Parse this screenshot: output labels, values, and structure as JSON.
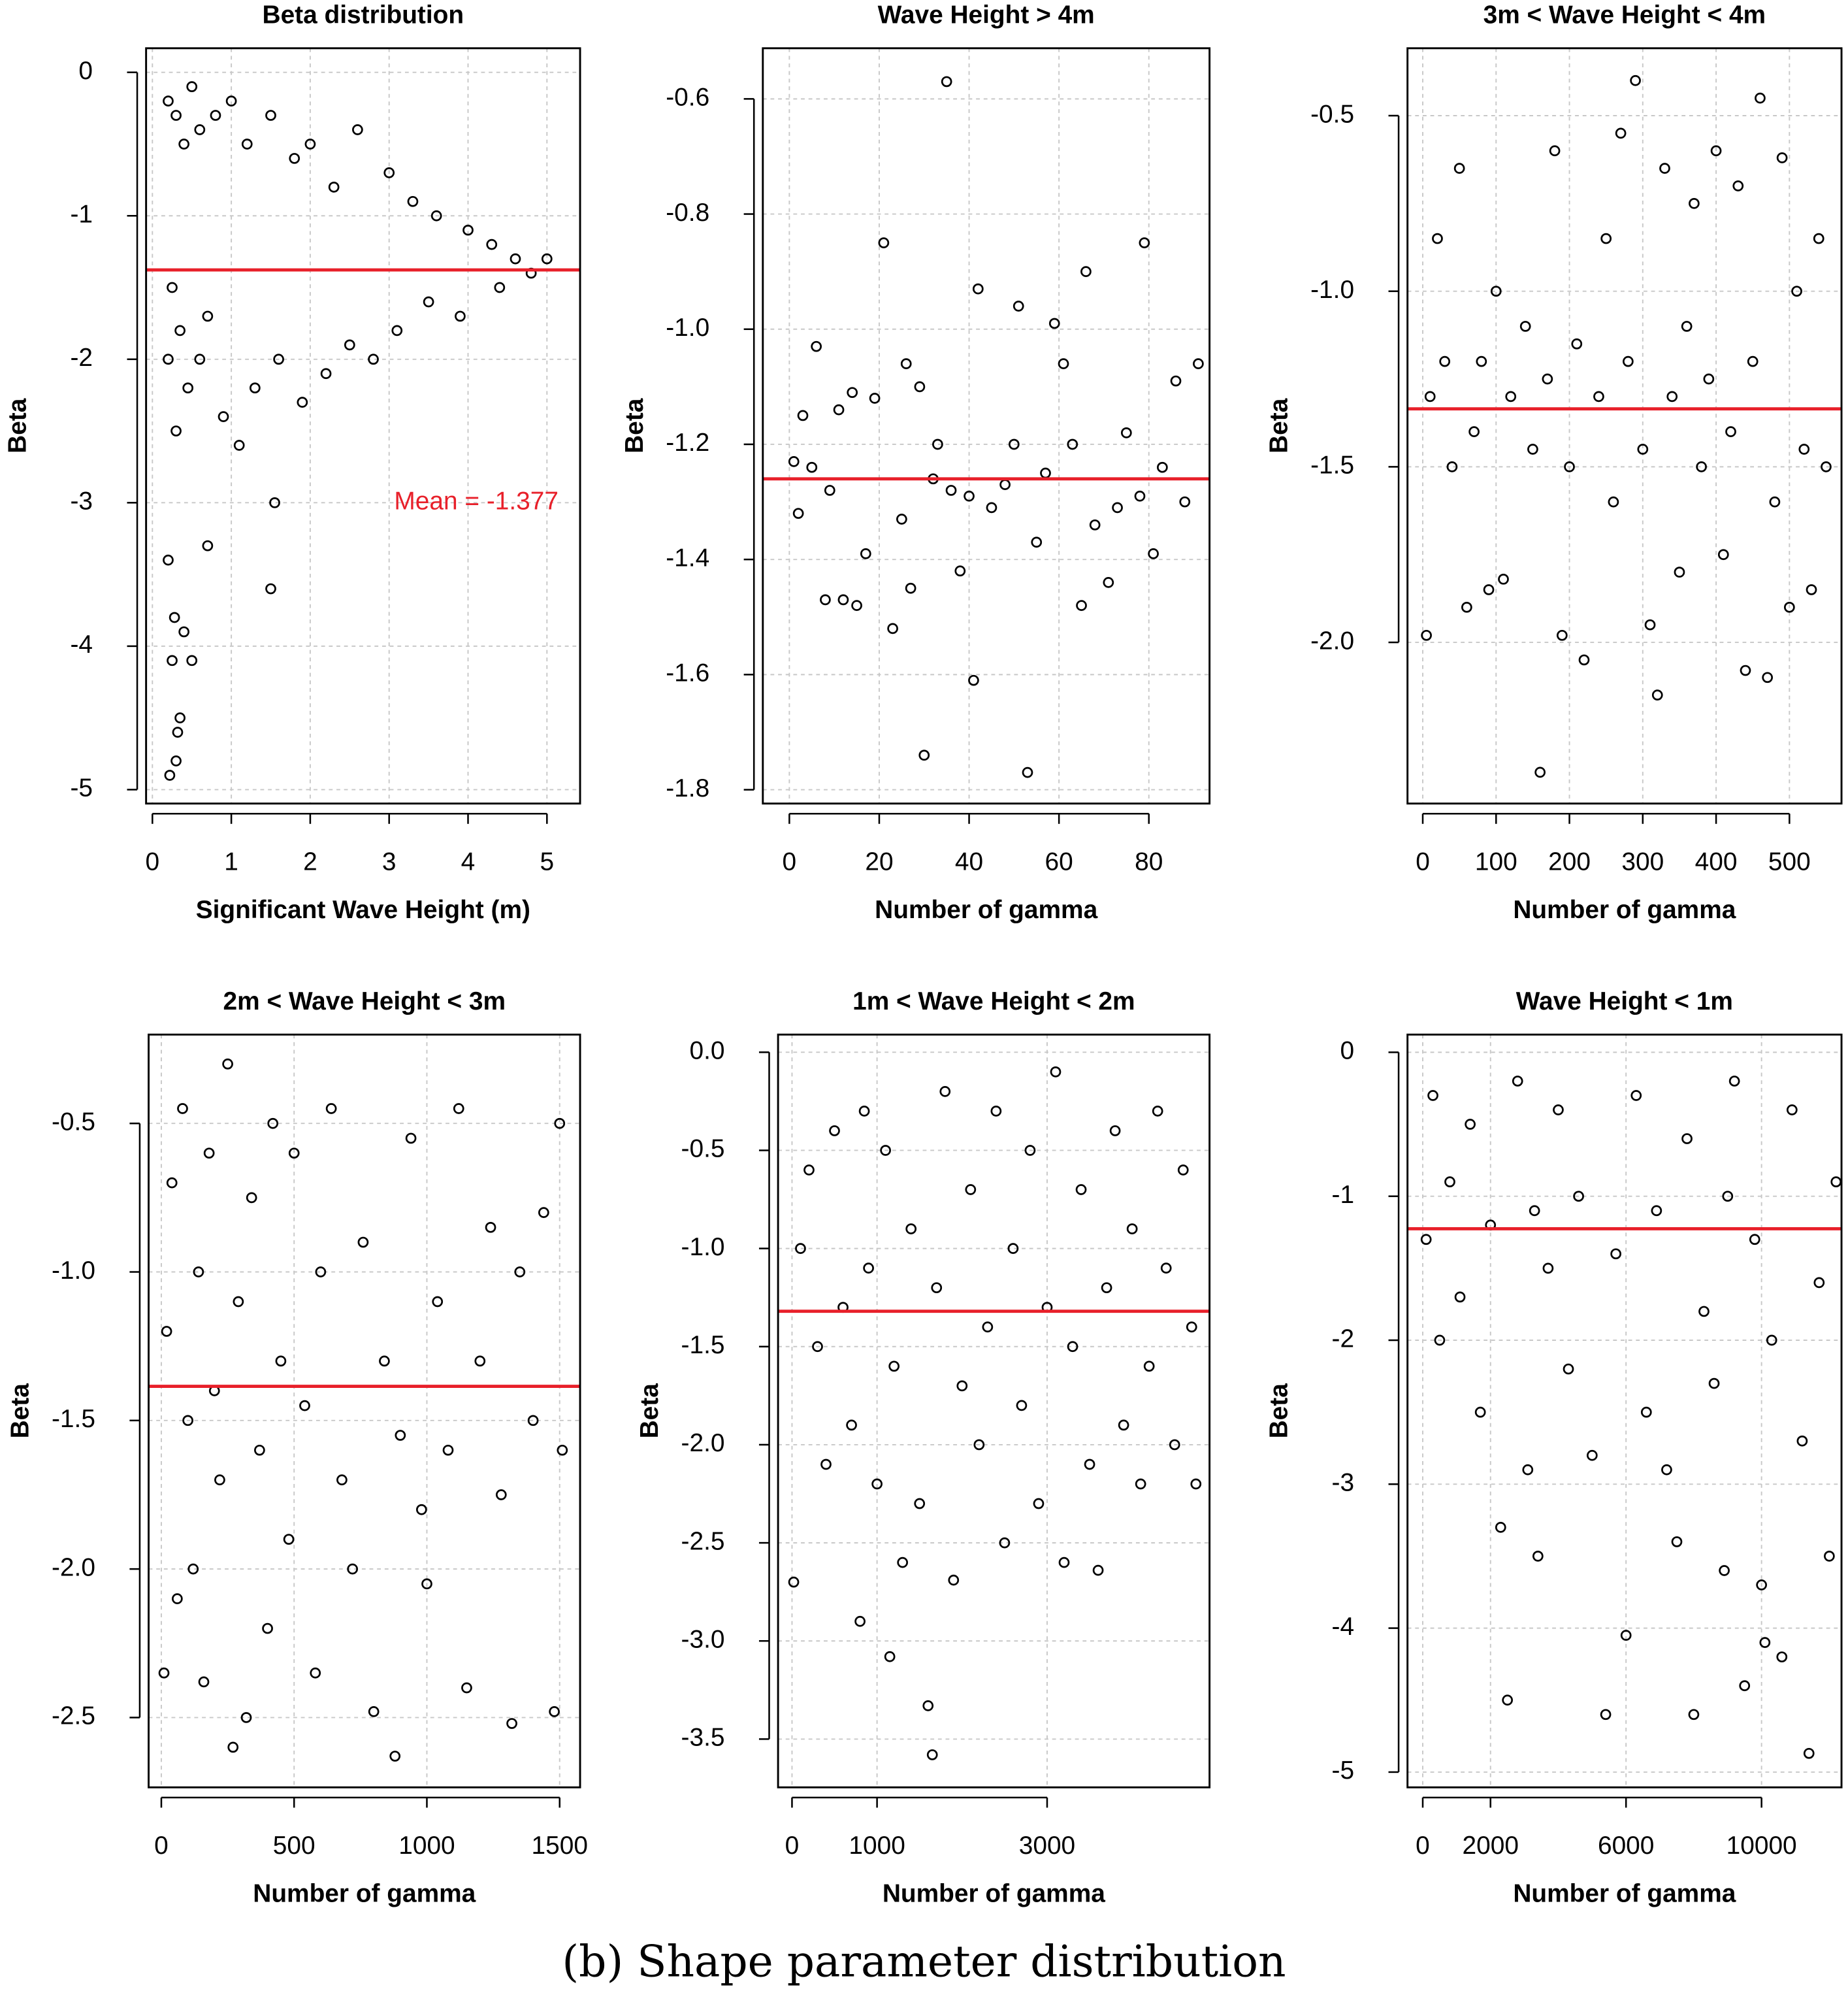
{
  "chart_data": [
    {
      "type": "scatter",
      "title": "Beta distribution",
      "x_label": "Significant Wave Height (m)",
      "y_label": "Beta",
      "x": [
        0.2,
        0.3,
        0.4,
        0.5,
        0.6,
        0.8,
        1.0,
        1.2,
        1.5,
        1.8,
        2.0,
        2.3,
        2.6,
        3.0,
        3.3,
        3.6,
        4.0,
        4.3,
        4.6,
        5.0,
        0.2,
        0.3,
        0.25,
        0.35,
        0.45,
        0.6,
        0.7,
        0.9,
        1.1,
        1.3,
        1.6,
        1.9,
        2.2,
        2.5,
        2.8,
        3.1,
        3.5,
        3.9,
        4.4,
        4.8,
        0.2,
        0.25,
        0.3,
        0.35,
        0.4,
        0.5,
        0.7,
        1.5,
        1.55,
        0.22,
        0.28,
        0.32
      ],
      "values": [
        -0.2,
        -0.3,
        -0.5,
        -0.1,
        -0.4,
        -0.3,
        -0.2,
        -0.5,
        -0.3,
        -0.6,
        -0.5,
        -0.8,
        -0.4,
        -0.7,
        -0.9,
        -1.0,
        -1.1,
        -1.2,
        -1.3,
        -1.3,
        -2.0,
        -2.5,
        -1.5,
        -1.8,
        -2.2,
        -2.0,
        -1.7,
        -2.4,
        -2.6,
        -2.2,
        -2.0,
        -2.3,
        -2.1,
        -1.9,
        -2.0,
        -1.8,
        -1.6,
        -1.7,
        -1.5,
        -1.4,
        -3.4,
        -4.1,
        -4.8,
        -4.5,
        -3.9,
        -4.1,
        -3.3,
        -3.6,
        -3.0,
        -4.9,
        -3.8,
        -4.6
      ],
      "color": "#000000",
      "mean_line": -1.377,
      "mean_line_color": "#e8202a",
      "annotation": "Mean = -1.377",
      "xlim": [
        -0.08,
        5.42
      ],
      "ylim": [
        -5.097,
        0.168
      ],
      "xticks": [
        0,
        1,
        2,
        3,
        4,
        5
      ],
      "yticks": [
        0,
        -1,
        -2,
        -3,
        -4,
        -5
      ],
      "grid": true
    },
    {
      "type": "scatter",
      "title": "Wave Height > 4m",
      "x_label": "Number of gamma",
      "y_label": "Beta",
      "x": [
        1,
        2,
        3,
        5,
        6,
        8,
        9,
        11,
        12,
        14,
        15,
        17,
        19,
        21,
        23,
        25,
        26,
        27,
        29,
        30,
        32,
        33,
        35,
        36,
        38,
        40,
        41,
        42,
        45,
        48,
        50,
        51,
        53,
        55,
        57,
        59,
        61,
        63,
        65,
        66,
        68,
        71,
        73,
        75,
        78,
        79,
        81,
        83,
        86,
        88,
        91
      ],
      "values": [
        -1.23,
        -1.32,
        -1.15,
        -1.24,
        -1.03,
        -1.47,
        -1.28,
        -1.14,
        -1.47,
        -1.11,
        -1.48,
        -1.39,
        -1.12,
        -0.85,
        -1.52,
        -1.33,
        -1.06,
        -1.45,
        -1.1,
        -1.74,
        -1.26,
        -1.2,
        -0.57,
        -1.28,
        -1.42,
        -1.29,
        -1.61,
        -0.93,
        -1.31,
        -1.27,
        -1.2,
        -0.96,
        -1.77,
        -1.37,
        -1.25,
        -0.99,
        -1.06,
        -1.2,
        -1.48,
        -0.9,
        -1.34,
        -1.44,
        -1.31,
        -1.18,
        -1.29,
        -0.85,
        -1.39,
        -1.24,
        -1.09,
        -1.3,
        -1.06
      ],
      "color": "#000000",
      "mean_line": -1.26,
      "mean_line_color": "#e8202a",
      "xlim": [
        -5.9,
        93.5
      ],
      "ylim": [
        -1.824,
        -0.512
      ],
      "xticks": [
        0,
        20,
        40,
        60,
        80
      ],
      "yticks": [
        -0.6,
        -0.8,
        {
          "value": -1.0,
          "label": "-1.0"
        },
        -1.2,
        -1.4,
        -1.6,
        -1.8
      ],
      "grid": true
    },
    {
      "type": "scatter",
      "title": "3m < Wave Height < 4m",
      "x_label": "Number of gamma",
      "y_label": "Beta",
      "x": [
        5,
        10,
        20,
        30,
        40,
        50,
        60,
        70,
        80,
        90,
        100,
        110,
        120,
        140,
        150,
        160,
        170,
        180,
        190,
        200,
        210,
        220,
        240,
        250,
        260,
        270,
        280,
        290,
        300,
        310,
        320,
        330,
        340,
        350,
        360,
        370,
        380,
        390,
        400,
        410,
        420,
        430,
        440,
        450,
        460,
        470,
        480,
        490,
        500,
        510,
        520,
        530,
        540,
        550
      ],
      "values": [
        -1.98,
        -1.3,
        -0.85,
        -1.2,
        -1.5,
        -0.65,
        -1.9,
        -1.4,
        -1.2,
        -1.85,
        -1.0,
        -1.82,
        -1.3,
        -1.1,
        -1.45,
        -2.37,
        -1.25,
        -0.6,
        -1.98,
        -1.5,
        -1.15,
        -2.05,
        -1.3,
        -0.85,
        -1.6,
        -0.55,
        -1.2,
        -0.4,
        -1.45,
        -1.95,
        -2.15,
        -0.65,
        -1.3,
        -1.8,
        -1.1,
        -0.75,
        -1.5,
        -1.25,
        -0.6,
        -1.75,
        -1.4,
        -0.7,
        -2.08,
        -1.2,
        -0.45,
        -2.1,
        -1.6,
        -0.62,
        -1.9,
        -1.0,
        -1.45,
        -1.85,
        -0.85,
        -1.5
      ],
      "color": "#000000",
      "mean_line": -1.335,
      "mean_line_color": "#e8202a",
      "xlim": [
        -20.8,
        571
      ],
      "ylim": [
        -2.459,
        -0.308
      ],
      "xticks": [
        0,
        100,
        200,
        300,
        400,
        500
      ],
      "yticks": [
        -0.5,
        {
          "value": -1.0,
          "label": "-1.0"
        },
        -1.5,
        {
          "value": -2.0,
          "label": "-2.0"
        }
      ],
      "grid": true
    },
    {
      "type": "scatter",
      "title": "2m < Wave Height < 3m",
      "x_label": "Number of gamma",
      "y_label": "Beta",
      "x": [
        10,
        20,
        40,
        60,
        80,
        100,
        120,
        140,
        160,
        180,
        200,
        220,
        250,
        270,
        290,
        320,
        340,
        370,
        400,
        420,
        450,
        480,
        500,
        540,
        580,
        600,
        640,
        680,
        720,
        760,
        800,
        840,
        880,
        900,
        940,
        980,
        1000,
        1040,
        1080,
        1120,
        1150,
        1200,
        1240,
        1280,
        1320,
        1350,
        1400,
        1440,
        1480,
        1500,
        1510
      ],
      "values": [
        -2.35,
        -1.2,
        -0.7,
        -2.1,
        -0.45,
        -1.5,
        -2.0,
        -1.0,
        -2.38,
        -0.6,
        -1.4,
        -1.7,
        -0.3,
        -2.6,
        -1.1,
        -2.5,
        -0.75,
        -1.6,
        -2.2,
        -0.5,
        -1.3,
        -1.9,
        -0.6,
        -1.45,
        -2.35,
        -1.0,
        -0.45,
        -1.7,
        -2.0,
        -0.9,
        -2.48,
        -1.3,
        -2.63,
        -1.55,
        -0.55,
        -1.8,
        -2.05,
        -1.1,
        -1.6,
        -0.45,
        -2.4,
        -1.3,
        -0.85,
        -1.75,
        -2.52,
        -1.0,
        -1.5,
        -0.8,
        -2.48,
        -0.5,
        -1.6
      ],
      "color": "#000000",
      "mean_line": -1.385,
      "mean_line_color": "#e8202a",
      "xlim": [
        -47.8,
        1577
      ],
      "ylim": [
        -2.735,
        -0.201
      ],
      "xticks": [
        0,
        500,
        1000,
        1500
      ],
      "yticks": [
        -0.5,
        {
          "value": -1.0,
          "label": "-1.0"
        },
        -1.5,
        {
          "value": -2.0,
          "label": "-2.0"
        },
        -2.5
      ],
      "grid": true
    },
    {
      "type": "scatter",
      "title": "1m < Wave Height < 2m",
      "x_label": "Number of gamma",
      "y_label": "Beta",
      "x": [
        20,
        100,
        200,
        300,
        400,
        500,
        600,
        700,
        800,
        850,
        900,
        1000,
        1100,
        1150,
        1200,
        1300,
        1400,
        1500,
        1600,
        1650,
        1700,
        1800,
        1900,
        2000,
        2100,
        2200,
        2300,
        2400,
        2500,
        2600,
        2700,
        2800,
        2900,
        3000,
        3100,
        3200,
        3300,
        3400,
        3500,
        3600,
        3700,
        3800,
        3900,
        4000,
        4100,
        4200,
        4300,
        4400,
        4500,
        4600,
        4700,
        4750
      ],
      "values": [
        -2.7,
        -1.0,
        -0.6,
        -1.5,
        -2.1,
        -0.4,
        -1.3,
        -1.9,
        -2.9,
        -0.3,
        -1.1,
        -2.2,
        -0.5,
        -3.08,
        -1.6,
        -2.6,
        -0.9,
        -2.3,
        -3.33,
        -3.58,
        -1.2,
        -0.2,
        -2.69,
        -1.7,
        -0.7,
        -2.0,
        -1.4,
        -0.3,
        -2.5,
        -1.0,
        -1.8,
        -0.5,
        -2.3,
        -1.3,
        -0.1,
        -2.6,
        -1.5,
        -0.7,
        -2.1,
        -2.64,
        -1.2,
        -0.4,
        -1.9,
        -0.9,
        -2.2,
        -1.6,
        -0.3,
        -1.1,
        -2.0,
        -0.6,
        -1.4,
        -2.2
      ],
      "color": "#000000",
      "mean_line": -1.32,
      "mean_line_color": "#e8202a",
      "xlim": [
        -164,
        4910
      ],
      "ylim": [
        -3.746,
        0.09
      ],
      "xticks": [
        0,
        1000,
        3000
      ],
      "yticks": [
        {
          "value": 0,
          "label": "0.0"
        },
        -0.5,
        {
          "value": -1.0,
          "label": "-1.0"
        },
        -1.5,
        {
          "value": -2.0,
          "label": "-2.0"
        },
        -2.5,
        {
          "value": -3.0,
          "label": "-3.0"
        },
        -3.5
      ],
      "grid": true
    },
    {
      "type": "scatter",
      "title": "Wave Height < 1m",
      "x_label": "Number of gamma",
      "y_label": "Beta",
      "x": [
        100,
        300,
        500,
        800,
        1100,
        1400,
        1700,
        2000,
        2300,
        2500,
        2800,
        3100,
        3400,
        3700,
        4000,
        4300,
        4600,
        5000,
        5400,
        5700,
        6000,
        6300,
        6600,
        6900,
        7200,
        7500,
        7800,
        8000,
        8300,
        8600,
        8900,
        9200,
        9500,
        9800,
        10000,
        10300,
        10600,
        10900,
        11200,
        11400,
        11700,
        12000,
        12200,
        10100,
        9000,
        3300
      ],
      "values": [
        -1.3,
        -0.3,
        -2.0,
        -0.9,
        -1.7,
        -0.5,
        -2.5,
        -1.2,
        -3.3,
        -4.5,
        -0.2,
        -2.9,
        -3.5,
        -1.5,
        -0.4,
        -2.2,
        -1.0,
        -2.8,
        -4.6,
        -1.4,
        -4.05,
        -0.3,
        -2.5,
        -1.1,
        -2.9,
        -3.4,
        -0.6,
        -4.6,
        -1.8,
        -2.3,
        -3.6,
        -0.2,
        -4.4,
        -1.3,
        -3.7,
        -2.0,
        -4.2,
        -0.4,
        -2.7,
        -4.87,
        -1.6,
        -3.5,
        -0.9,
        -4.1,
        -1.0,
        -1.1
      ],
      "color": "#000000",
      "mean_line": -1.226,
      "mean_line_color": "#e8202a",
      "xlim": [
        -450,
        12360
      ],
      "ylim": [
        -5.106,
        0.123
      ],
      "xticks": [
        0,
        2000,
        6000,
        10000
      ],
      "yticks": [
        0,
        -1,
        -2,
        -3,
        -4,
        -5
      ],
      "grid": true
    }
  ],
  "caption": "(b) Shape parameter distribution"
}
